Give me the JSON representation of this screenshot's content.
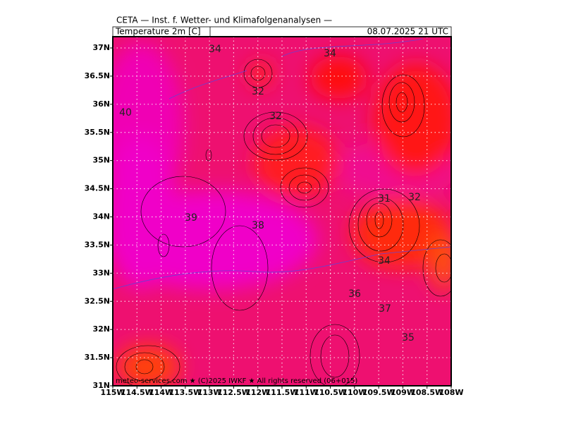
{
  "header": {
    "title": "CETA — Inst. f. Wetter- und Klimafolgenanalysen —",
    "variable": "Temperature 2m [C]",
    "valid_time": "08.07.2025 21 UTC"
  },
  "axes": {
    "lat_labels": [
      "37N",
      "36.5N",
      "36N",
      "35.5N",
      "35N",
      "34.5N",
      "34N",
      "33.5N",
      "33N",
      "32.5N",
      "32N",
      "31.5N",
      "31N"
    ],
    "lon_labels": [
      "115W",
      "114.5W",
      "114W",
      "113.5W",
      "113W",
      "112.5W",
      "112W",
      "111.5W",
      "111W",
      "110.5W",
      "110W",
      "109.5W",
      "109W",
      "108.5W",
      "108W"
    ]
  },
  "contour_labels": [
    34,
    34,
    32,
    40,
    32,
    31,
    32,
    39,
    38,
    34,
    36,
    37,
    35
  ],
  "footer": "meteo-services.com ★ (C)2025 IWKF ★ All rights reserved (06+015)"
}
